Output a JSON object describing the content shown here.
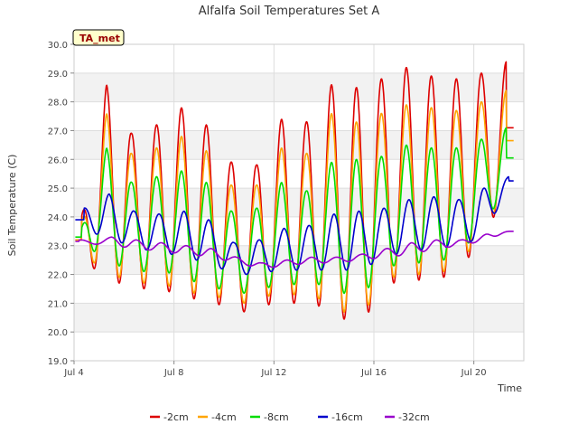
{
  "chart_data": {
    "type": "line",
    "title": "Alfalfa Soil Temperatures Set A",
    "xlabel": "Time",
    "ylabel": "Soil Temperature (C)",
    "ylim": [
      19.0,
      30.0
    ],
    "xlim": [
      4.0,
      22.0
    ],
    "x_ticks": [
      {
        "x": 4,
        "label": "Jul 4"
      },
      {
        "x": 8,
        "label": "Jul 8"
      },
      {
        "x": 12,
        "label": "Jul 12"
      },
      {
        "x": 16,
        "label": "Jul 16"
      },
      {
        "x": 20,
        "label": "Jul 20"
      }
    ],
    "y_ticks": [
      "19.0",
      "20.0",
      "21.0",
      "22.0",
      "23.0",
      "24.0",
      "25.0",
      "26.0",
      "27.0",
      "28.0",
      "29.0",
      "30.0"
    ],
    "grid": true,
    "background_bands": true,
    "legend": {
      "placement": "bottom-center"
    },
    "badge": {
      "label": "TA_met",
      "bg": "#ffffcc",
      "fg": "#990000"
    },
    "series": [
      {
        "name": "-2cm",
        "color": "#dd0000",
        "days": [
          4.3,
          5.3,
          6.3,
          7.3,
          8.3,
          9.3,
          10.3,
          11.3,
          12.3,
          13.3,
          14.3,
          15.3,
          16.3,
          17.3,
          18.3,
          19.3,
          20.3,
          21.3
        ],
        "max": [
          24.0,
          28.6,
          26.9,
          27.2,
          27.8,
          27.2,
          25.9,
          25.8,
          27.4,
          27.3,
          28.6,
          28.5,
          28.8,
          29.2,
          28.9,
          28.8,
          29.0,
          29.4
        ],
        "min": [
          22.4,
          22.0,
          21.4,
          21.6,
          21.2,
          21.1,
          20.8,
          20.6,
          21.3,
          20.7,
          21.1,
          19.8,
          21.6,
          21.8,
          21.8,
          22.0,
          23.2,
          24.8
        ]
      },
      {
        "name": "-4cm",
        "color": "#ffa500",
        "days": [
          4.3,
          5.3,
          6.3,
          7.3,
          8.3,
          9.3,
          10.3,
          11.3,
          12.3,
          13.3,
          14.3,
          15.3,
          16.3,
          17.3,
          18.3,
          19.3,
          20.3,
          21.3
        ],
        "max": [
          23.8,
          27.6,
          26.2,
          26.4,
          26.8,
          26.3,
          25.1,
          25.1,
          26.4,
          26.2,
          27.6,
          27.3,
          27.6,
          27.9,
          27.8,
          27.7,
          28.0,
          28.4
        ],
        "min": [
          22.6,
          22.2,
          21.6,
          21.8,
          21.4,
          21.3,
          21.1,
          20.9,
          21.6,
          21.0,
          21.3,
          20.1,
          21.8,
          22.0,
          22.0,
          22.2,
          23.4,
          24.9
        ]
      },
      {
        "name": "-8cm",
        "color": "#00dd00",
        "days": [
          4.3,
          5.3,
          6.3,
          7.3,
          8.3,
          9.3,
          10.3,
          11.3,
          12.3,
          13.3,
          14.3,
          15.3,
          16.3,
          17.3,
          18.3,
          19.3,
          20.3,
          21.3
        ],
        "max": [
          23.6,
          26.4,
          25.2,
          25.4,
          25.6,
          25.2,
          24.2,
          24.3,
          25.2,
          24.9,
          25.9,
          26.0,
          26.1,
          26.5,
          26.4,
          26.4,
          26.7,
          27.1
        ],
        "min": [
          23.0,
          22.6,
          22.0,
          22.2,
          21.9,
          21.6,
          21.4,
          21.3,
          21.8,
          21.5,
          21.8,
          20.9,
          22.2,
          22.4,
          22.4,
          22.6,
          23.6,
          25.0
        ]
      },
      {
        "name": "-16cm",
        "color": "#0000cc",
        "days": [
          4.4,
          5.4,
          6.4,
          7.4,
          8.4,
          9.4,
          10.4,
          11.4,
          12.4,
          13.4,
          14.4,
          15.4,
          16.4,
          17.4,
          18.4,
          19.4,
          20.4,
          21.4
        ],
        "max": [
          24.3,
          24.8,
          24.2,
          24.1,
          24.2,
          23.9,
          23.1,
          23.2,
          23.6,
          23.7,
          24.1,
          24.2,
          24.3,
          24.6,
          24.7,
          24.6,
          25.0,
          25.4
        ],
        "min": [
          23.5,
          23.3,
          22.9,
          22.8,
          22.6,
          22.4,
          22.0,
          22.0,
          22.2,
          22.1,
          22.2,
          22.1,
          22.6,
          22.8,
          22.9,
          23.0,
          23.3,
          25.1
        ]
      },
      {
        "name": "-32cm",
        "color": "#9900cc",
        "days": [
          4.2,
          5.5,
          6.5,
          7.5,
          8.5,
          9.5,
          10.5,
          11.5,
          12.5,
          13.5,
          14.5,
          15.5,
          16.5,
          17.5,
          18.5,
          19.5,
          20.5,
          21.4
        ],
        "max": [
          23.2,
          23.3,
          23.2,
          23.1,
          23.0,
          22.9,
          22.6,
          22.4,
          22.5,
          22.6,
          22.6,
          22.7,
          22.9,
          23.1,
          23.2,
          23.2,
          23.4,
          23.5
        ],
        "min": [
          23.1,
          23.0,
          22.9,
          22.8,
          22.7,
          22.6,
          22.4,
          22.2,
          22.3,
          22.4,
          22.4,
          22.5,
          22.6,
          22.7,
          22.9,
          23.0,
          23.2,
          23.5
        ]
      }
    ]
  }
}
